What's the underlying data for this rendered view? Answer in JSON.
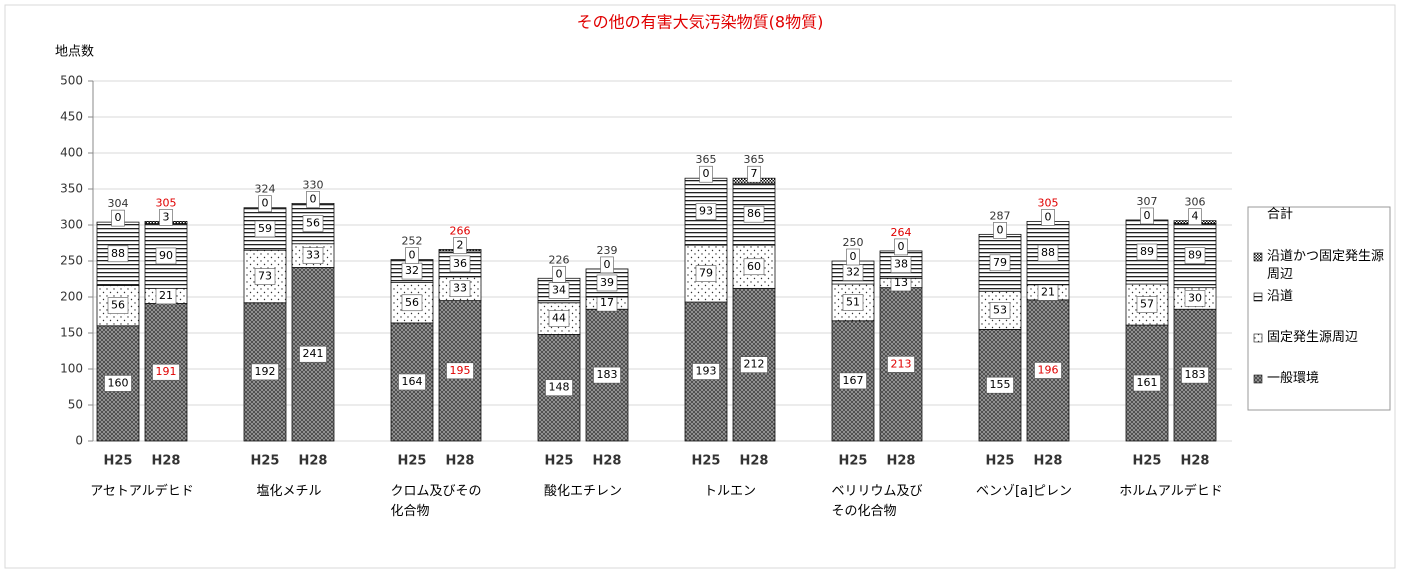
{
  "chart_data": {
    "type": "stacked-bar",
    "title": "その他の有害大気汚染物質(8物質)",
    "y_label": "地点数",
    "groups": [
      "アセトアルデヒド",
      "塩化メチル",
      "クロム及びその\n化合物",
      "酸化エチレン",
      "トルエン",
      "ベリリウム及び\nその化合物",
      "ベンゾ[a]ピレン",
      "ホルムアルデヒド"
    ],
    "categories": [
      "H25",
      "H28",
      "H25",
      "H28",
      "H25",
      "H28",
      "H25",
      "H28",
      "H25",
      "H28",
      "H25",
      "H28",
      "H25",
      "H28",
      "H25",
      "H28"
    ],
    "series": [
      {
        "name": "一般環境",
        "pattern": "crosshatch",
        "values": [
          160,
          191,
          192,
          241,
          164,
          195,
          148,
          183,
          193,
          212,
          167,
          213,
          155,
          196,
          161,
          183
        ],
        "label_colors": [
          "#000000",
          "#e00000",
          "#000000",
          "#000000",
          "#000000",
          "#e00000",
          "#000000",
          "#000000",
          "#000000",
          "#000000",
          "#000000",
          "#e00000",
          "#000000",
          "#e00000",
          "#000000",
          "#000000"
        ]
      },
      {
        "name": "固定発生源周辺",
        "pattern": "dots",
        "values": [
          56,
          21,
          73,
          33,
          56,
          33,
          44,
          17,
          79,
          60,
          51,
          13,
          53,
          21,
          57,
          30
        ]
      },
      {
        "name": "沿道",
        "pattern": "hlines",
        "values": [
          88,
          90,
          59,
          56,
          32,
          36,
          34,
          39,
          93,
          86,
          32,
          38,
          79,
          88,
          89,
          89
        ]
      },
      {
        "name": "沿道かつ固定発生源周辺",
        "pattern": "checker",
        "values": [
          0,
          3,
          0,
          0,
          0,
          2,
          0,
          0,
          0,
          7,
          0,
          0,
          0,
          0,
          0,
          4
        ]
      }
    ],
    "totals": {
      "name": "合計",
      "values": [
        304,
        305,
        324,
        330,
        252,
        266,
        226,
        239,
        365,
        365,
        250,
        264,
        287,
        305,
        307,
        306
      ],
      "label_colors": [
        "#333333",
        "#e00000",
        "#333333",
        "#333333",
        "#333333",
        "#e00000",
        "#333333",
        "#333333",
        "#333333",
        "#333333",
        "#333333",
        "#e00000",
        "#333333",
        "#e00000",
        "#333333",
        "#333333"
      ]
    },
    "ylim": [
      0,
      500
    ],
    "yticks": [
      0,
      50,
      100,
      150,
      200,
      250,
      300,
      350,
      400,
      450,
      500
    ],
    "grid": true,
    "legend": "right",
    "title_color": "#e00000"
  }
}
